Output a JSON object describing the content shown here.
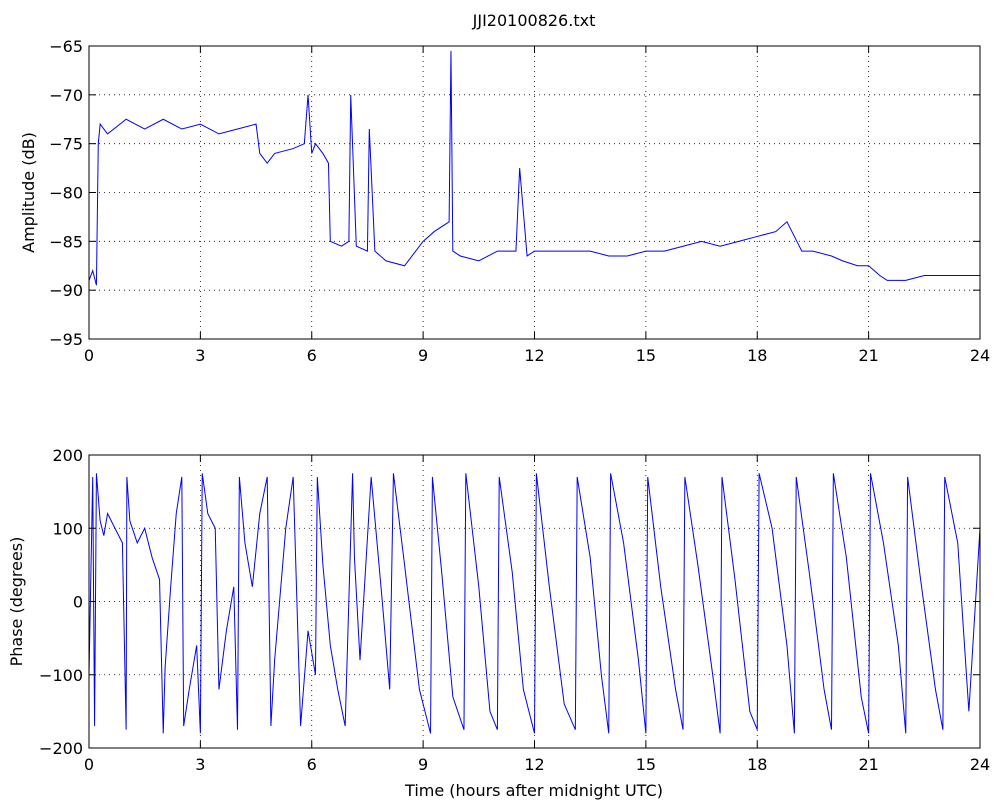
{
  "figure_title": "JJI20100826.txt",
  "chart_data": [
    {
      "type": "line",
      "title": "JJI20100826.txt",
      "xlabel": "",
      "ylabel": "Amplitude (dB)",
      "xlim": [
        0,
        24
      ],
      "ylim": [
        -95,
        -65
      ],
      "xticks": [
        0,
        3,
        6,
        9,
        12,
        15,
        18,
        21,
        24
      ],
      "yticks": [
        -95,
        -90,
        -85,
        -80,
        -75,
        -70,
        -65
      ],
      "grid": true,
      "line_color": "#0000ff",
      "series": [
        {
          "x": [
            0,
            0.1,
            0.2,
            0.25,
            0.3,
            0.5,
            1,
            1.5,
            2,
            2.5,
            3,
            3.5,
            4,
            4.5,
            4.6,
            4.8,
            5,
            5.5,
            5.8,
            5.9,
            6,
            6.1,
            6.3,
            6.45,
            6.5,
            6.8,
            7,
            7.05,
            7.2,
            7.5,
            7.55,
            7.7,
            8,
            8.5,
            9,
            9.3,
            9.7,
            9.75,
            9.8,
            10,
            10.5,
            11,
            11.5,
            11.6,
            11.8,
            12,
            12.5,
            13,
            13.5,
            14,
            14.5,
            15,
            15.5,
            16,
            16.5,
            17,
            17.5,
            18,
            18.5,
            18.8,
            19,
            19.2,
            19.5,
            20,
            20.3,
            20.7,
            21,
            21.3,
            21.5,
            22,
            22.5,
            23,
            23.5,
            24
          ],
          "y": [
            -89,
            -88,
            -89.5,
            -75,
            -73,
            -74,
            -72.5,
            -73.5,
            -72.5,
            -73.5,
            -73,
            -74,
            -73.5,
            -73,
            -76,
            -77,
            -76,
            -75.5,
            -75,
            -70,
            -76,
            -75,
            -76,
            -77,
            -85,
            -85.5,
            -85,
            -70,
            -85.5,
            -86,
            -73.5,
            -86,
            -87,
            -87.5,
            -85,
            -84,
            -83,
            -65.5,
            -86,
            -86.5,
            -87,
            -86,
            -86,
            -77.5,
            -86.5,
            -86,
            -86,
            -86,
            -86,
            -86.5,
            -86.5,
            -86,
            -86,
            -85.5,
            -85,
            -85.5,
            -85,
            -84.5,
            -84,
            -83,
            -84.5,
            -86,
            -86,
            -86.5,
            -87,
            -87.5,
            -87.5,
            -88.5,
            -89,
            -89,
            -88.5,
            -88.5,
            -88.5,
            -88.5
          ]
        }
      ]
    },
    {
      "type": "line",
      "title": "",
      "xlabel": "Time (hours after midnight UTC)",
      "ylabel": "Phase (degrees)",
      "xlim": [
        0,
        24
      ],
      "ylim": [
        -200,
        200
      ],
      "xticks": [
        0,
        3,
        6,
        9,
        12,
        15,
        18,
        21,
        24
      ],
      "yticks": [
        -200,
        -100,
        0,
        100,
        200
      ],
      "grid": true,
      "line_color": "#0000ff",
      "series": [
        {
          "x": [
            0,
            0.1,
            0.15,
            0.2,
            0.3,
            0.4,
            0.5,
            0.7,
            0.9,
            1,
            1.02,
            1.1,
            1.3,
            1.5,
            1.7,
            1.9,
            2.0,
            2.05,
            2.2,
            2.35,
            2.5,
            2.55,
            2.7,
            2.9,
            3.0,
            3.05,
            3.2,
            3.4,
            3.5,
            3.7,
            3.9,
            4.0,
            4.05,
            4.2,
            4.4,
            4.6,
            4.8,
            4.9,
            5.0,
            5.3,
            5.5,
            5.7,
            5.9,
            6.1,
            6.15,
            6.3,
            6.5,
            6.7,
            6.9,
            7.1,
            7.15,
            7.3,
            7.6,
            7.9,
            8.1,
            8.2,
            8.5,
            8.9,
            9.2,
            9.25,
            9.5,
            9.8,
            10.1,
            10.15,
            10.5,
            10.8,
            11.0,
            11.05,
            11.4,
            11.7,
            12.0,
            12.05,
            12.4,
            12.8,
            13.1,
            13.15,
            13.5,
            13.8,
            14.0,
            14.05,
            14.4,
            14.8,
            15.0,
            15.05,
            15.4,
            15.8,
            16.0,
            16.05,
            16.4,
            16.8,
            17.0,
            17.05,
            17.4,
            17.8,
            18.0,
            18.05,
            18.4,
            18.8,
            19.0,
            19.05,
            19.4,
            19.8,
            20.0,
            20.05,
            20.4,
            20.8,
            21.0,
            21.05,
            21.4,
            21.8,
            22.0,
            22.05,
            22.4,
            22.8,
            23.0,
            23.05,
            23.4,
            23.7,
            24
          ],
          "y": [
            -100,
            170,
            -170,
            175,
            110,
            90,
            120,
            100,
            80,
            -175,
            170,
            110,
            80,
            100,
            60,
            30,
            -180,
            -90,
            20,
            120,
            170,
            -170,
            -120,
            -60,
            -180,
            175,
            120,
            100,
            -120,
            -40,
            20,
            -175,
            170,
            80,
            20,
            120,
            170,
            -170,
            -80,
            100,
            170,
            -170,
            -40,
            -100,
            170,
            50,
            -60,
            -120,
            -170,
            175,
            60,
            -80,
            170,
            0,
            -120,
            175,
            50,
            -120,
            -180,
            170,
            40,
            -130,
            -175,
            175,
            20,
            -150,
            -175,
            170,
            40,
            -120,
            -180,
            175,
            20,
            -140,
            -175,
            170,
            60,
            -100,
            -180,
            175,
            80,
            -80,
            -180,
            170,
            20,
            -120,
            -175,
            170,
            50,
            -100,
            -180,
            170,
            30,
            -150,
            -175,
            175,
            100,
            -60,
            -180,
            170,
            40,
            -120,
            -175,
            175,
            60,
            -130,
            -180,
            175,
            80,
            -60,
            -180,
            170,
            30,
            -120,
            -175,
            170,
            80,
            -150,
            100
          ]
        }
      ]
    }
  ]
}
